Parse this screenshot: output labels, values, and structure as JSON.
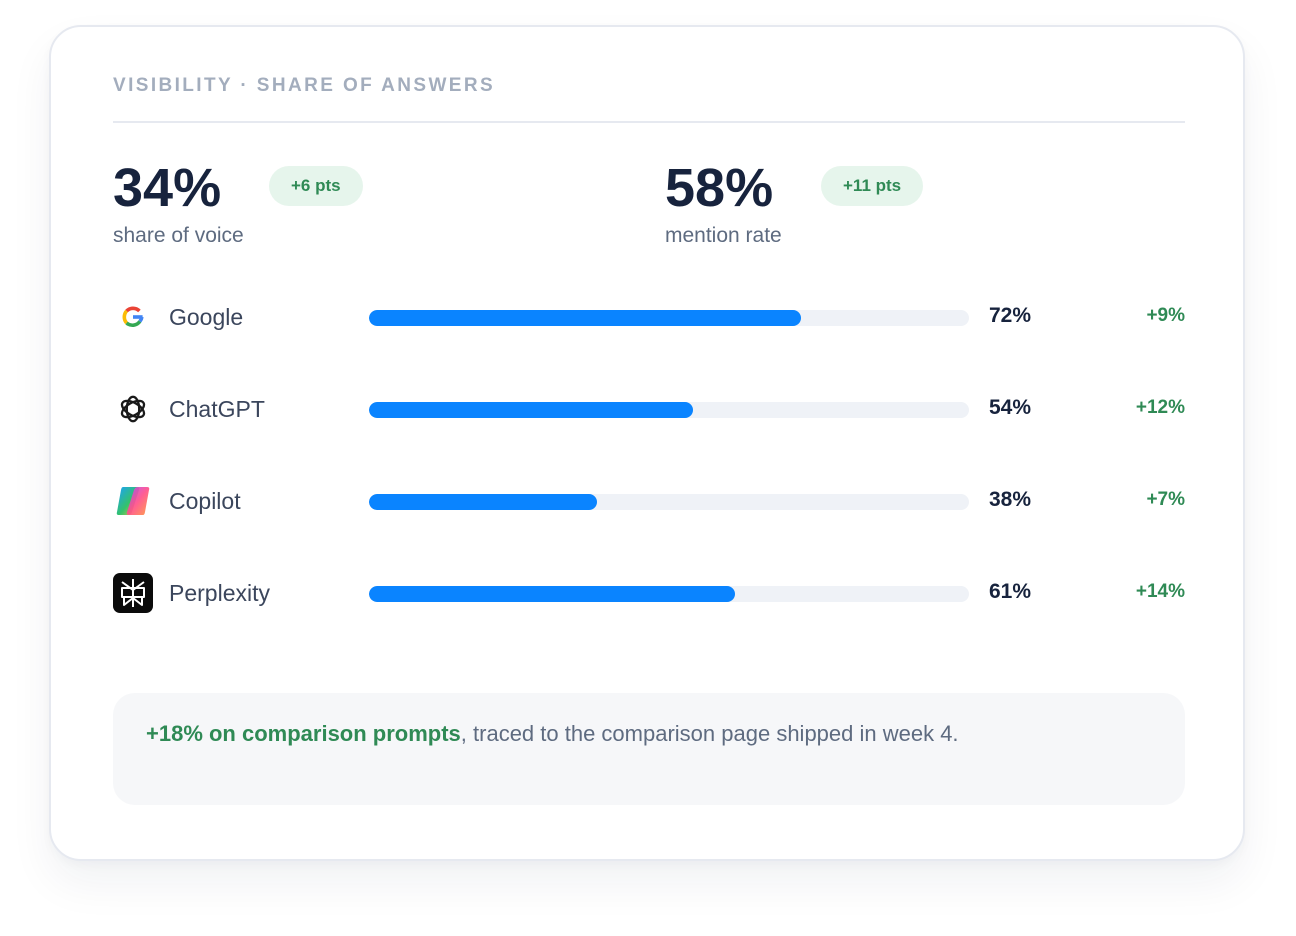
{
  "header": {
    "eyebrow": "VISIBILITY · SHARE OF ANSWERS"
  },
  "metrics": [
    {
      "value": "34%",
      "label": "share of voice",
      "delta": "+6 pts"
    },
    {
      "value": "58%",
      "label": "mention rate",
      "delta": "+11 pts"
    }
  ],
  "engines": [
    {
      "name": "Google",
      "icon": "google-icon",
      "percent": 72,
      "percent_label": "72%",
      "delta": "+9%"
    },
    {
      "name": "ChatGPT",
      "icon": "chatgpt-icon",
      "percent": 54,
      "percent_label": "54%",
      "delta": "+12%"
    },
    {
      "name": "Copilot",
      "icon": "copilot-icon",
      "percent": 38,
      "percent_label": "38%",
      "delta": "+7%"
    },
    {
      "name": "Perplexity",
      "icon": "perplexity-icon",
      "percent": 61,
      "percent_label": "61%",
      "delta": "+14%"
    }
  ],
  "note": {
    "highlight": "+18% on comparison prompts",
    "text": ", traced to the comparison page shipped in week 4."
  },
  "colors": {
    "accent_bar": "#0a84ff",
    "positive": "#2f8a55",
    "pill_bg": "#e6f5ec",
    "heading": "#17233d",
    "muted": "#a3adbd"
  }
}
